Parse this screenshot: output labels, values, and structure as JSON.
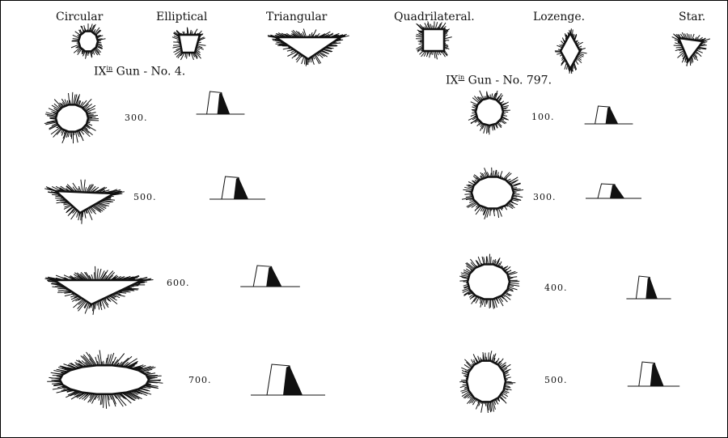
{
  "shape_headers": [
    "Circular",
    "Elliptical",
    "Triangular",
    "Quadrilateral.",
    "Lozenge.",
    "Star."
  ],
  "left_gun": {
    "prefix": "IX",
    "sup": "in",
    "rest": "Gun - No. 4."
  },
  "right_gun": {
    "prefix": "IX",
    "sup": "in",
    "rest": "Gun - No. 797."
  },
  "left_rows": [
    "300.",
    "500.",
    "600.",
    "700."
  ],
  "right_rows": [
    "100.",
    "300.",
    "400.",
    "500."
  ],
  "ink_color": "#111111"
}
